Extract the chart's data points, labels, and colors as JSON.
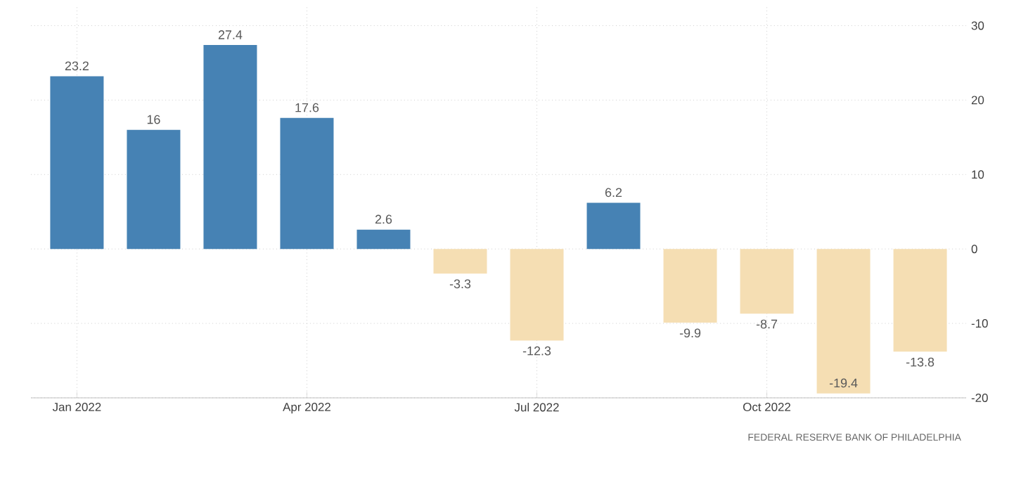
{
  "chart_data": {
    "type": "bar",
    "categories": [
      "Jan 2022",
      null,
      null,
      "Apr 2022",
      null,
      null,
      "Jul 2022",
      null,
      null,
      "Oct 2022",
      null,
      null
    ],
    "values": [
      23.2,
      16,
      27.4,
      17.6,
      2.6,
      -3.3,
      -12.3,
      6.2,
      -9.9,
      -8.7,
      -19.4,
      -13.8
    ],
    "colors": [
      "#4682b4",
      "#4682b4",
      "#4682b4",
      "#4682b4",
      "#4682b4",
      "#f5deb3",
      "#f5deb3",
      "#4682b4",
      "#f5deb3",
      "#f5deb3",
      "#f5deb3",
      "#f5deb3"
    ],
    "ylim": [
      -20,
      32.5
    ],
    "yticks": [
      -20,
      -10,
      0,
      10,
      20,
      30
    ],
    "grid": true,
    "data_labels": true,
    "annotations": [
      "FEDERAL RESERVE BANK OF PHILADELPHIA"
    ]
  }
}
